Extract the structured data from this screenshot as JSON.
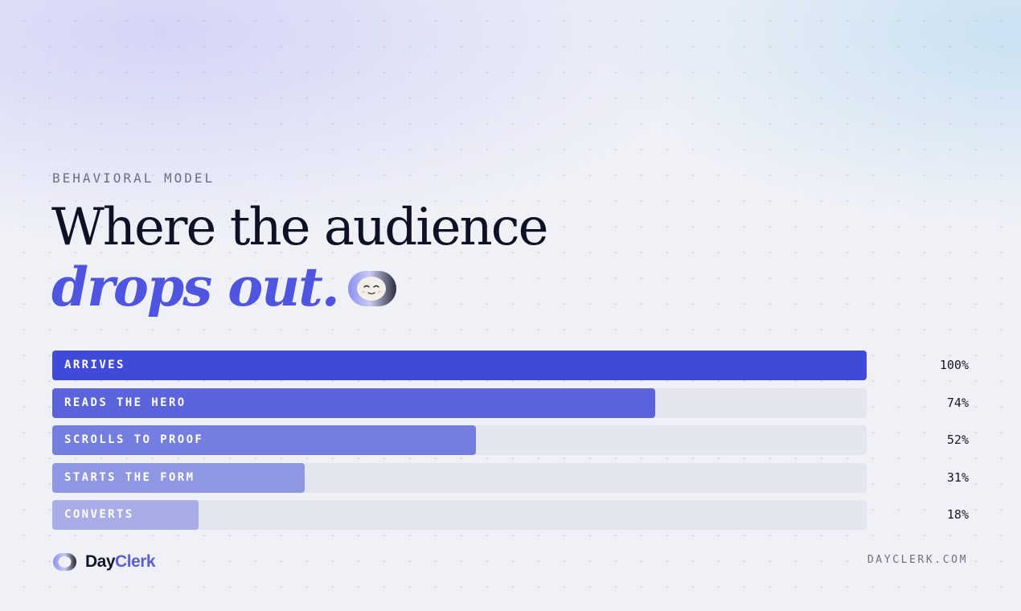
{
  "eyebrow": "BEHAVIORAL MODEL",
  "title": {
    "line1": "Where the audience",
    "line2": "drops out."
  },
  "mascot_icon": "smiling-face-ring-icon",
  "chart_data": {
    "type": "bar",
    "orientation": "horizontal",
    "categories": [
      "ARRIVES",
      "READS THE HERO",
      "SCROLLS TO PROOF",
      "STARTS THE FORM",
      "CONVERTS"
    ],
    "values": [
      100,
      74,
      52,
      31,
      18
    ],
    "value_labels": [
      "100%",
      "74%",
      "52%",
      "31%",
      "18%"
    ],
    "xlim": [
      0,
      100
    ],
    "colors": [
      "#3f4bd8",
      "#5a62dc",
      "#747de0",
      "#8f96e4",
      "#a8ade8"
    ],
    "track_color": "#e3e6ee",
    "grid": false
  },
  "brand": {
    "logo_icon": "dayclerk-ring-logo-icon",
    "name_part1": "Day",
    "name_part2": "Clerk"
  },
  "site_url": "DAYCLERK.COM"
}
